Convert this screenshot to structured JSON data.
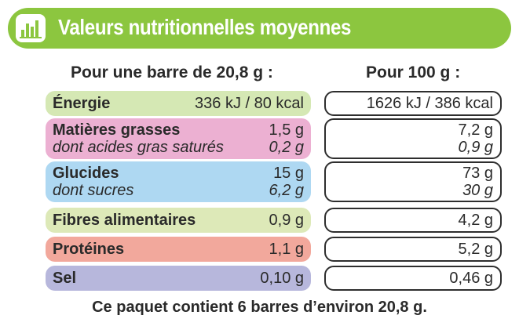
{
  "header": {
    "title": "Valeurs nutritionnelles moyennes",
    "icon": "bar-chart-icon",
    "color": "#8cc63f"
  },
  "columns": {
    "per_bar": "Pour une barre de 20,8 g :",
    "per_100g": "Pour 100 g :"
  },
  "rows": {
    "energie": {
      "name": "Énergie",
      "per_bar": "336 kJ / 80 kcal",
      "per_100g": "1626 kJ / 386 kcal",
      "color": "#d5e8b4"
    },
    "matieres_grasses": {
      "name": "Matières grasses",
      "per_bar": "1,5 g",
      "per_100g": "7,2 g",
      "color": "#ecb0d2"
    },
    "acides_gras": {
      "name": "dont acides gras saturés",
      "per_bar": "0,2 g",
      "per_100g": "0,9 g"
    },
    "glucides": {
      "name": "Glucides",
      "per_bar": "15 g",
      "per_100g": "73 g",
      "color": "#aed8f2"
    },
    "sucres": {
      "name": "dont sucres",
      "per_bar": "6,2 g",
      "per_100g": "30 g"
    },
    "fibres": {
      "name": "Fibres alimentaires",
      "per_bar": "0,9 g",
      "per_100g": "4,2 g",
      "color": "#dde9b8"
    },
    "proteines": {
      "name": "Protéines",
      "per_bar": "1,1 g",
      "per_100g": "5,2 g",
      "color": "#f2a89c"
    },
    "sel": {
      "name": "Sel",
      "per_bar": "0,10 g",
      "per_100g": "0,46 g",
      "color": "#b7b7dc"
    }
  },
  "footer": "Ce paquet contient 6 barres d’environ 20,8 g."
}
